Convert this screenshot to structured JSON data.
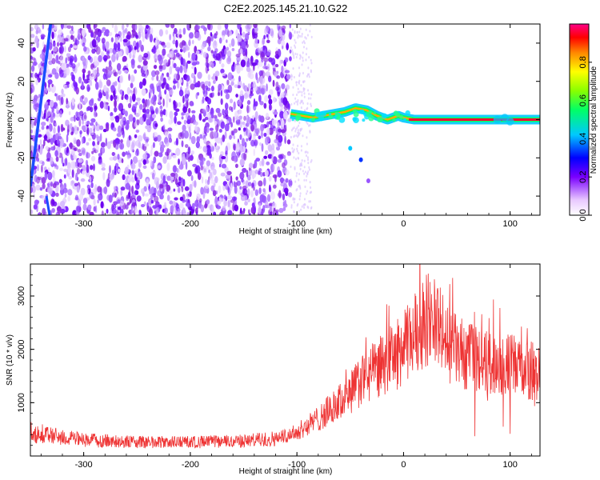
{
  "title": "C2E2.2025.145.21.10.G22",
  "chart_data": [
    {
      "type": "heatmap",
      "xlabel": "Height of straight line (km)",
      "ylabel": "Frequency (Hz)",
      "xlim": [
        -350,
        128
      ],
      "ylim": [
        -50,
        50
      ],
      "x_ticks": [
        -300,
        -200,
        -100,
        0,
        100
      ],
      "y_ticks": [
        -40,
        -20,
        0,
        20,
        40
      ],
      "colorbar": {
        "label": "Normalized spectral amplitude",
        "range": [
          0,
          1
        ],
        "ticks": [
          0.0,
          0.2,
          0.4,
          0.6,
          0.8
        ]
      },
      "ridge": {
        "description": "main frequency trace",
        "points": [
          [
            -106,
            3
          ],
          [
            -95,
            2
          ],
          [
            -85,
            1
          ],
          [
            -75,
            2
          ],
          [
            -65,
            3
          ],
          [
            -55,
            4
          ],
          [
            -45,
            6
          ],
          [
            -35,
            5
          ],
          [
            -25,
            2
          ],
          [
            -15,
            0
          ],
          [
            -5,
            2
          ],
          [
            0,
            1
          ],
          [
            10,
            0
          ],
          [
            128,
            0
          ]
        ]
      },
      "noise_region": {
        "x_range": [
          -350,
          -106
        ]
      }
    },
    {
      "type": "line",
      "xlabel": "Height of straight line (km)",
      "ylabel": "SNR (10 * v/v)",
      "xlim": [
        -350,
        128
      ],
      "ylim": [
        0,
        3600
      ],
      "x_ticks": [
        -300,
        -200,
        -100,
        0,
        100
      ],
      "y_ticks": [
        1000,
        2000,
        3000
      ],
      "series": [
        {
          "color": "#ee3333",
          "envelope": [
            [
              -350,
              450
            ],
            [
              -330,
              380
            ],
            [
              -300,
              300
            ],
            [
              -250,
              260
            ],
            [
              -200,
              260
            ],
            [
              -150,
              280
            ],
            [
              -120,
              330
            ],
            [
              -100,
              450
            ],
            [
              -80,
              700
            ],
            [
              -60,
              1000
            ],
            [
              -40,
              1400
            ],
            [
              -20,
              1700
            ],
            [
              0,
              2000
            ],
            [
              10,
              2300
            ],
            [
              20,
              2550
            ],
            [
              30,
              2600
            ],
            [
              40,
              2100
            ],
            [
              60,
              1850
            ],
            [
              80,
              1750
            ],
            [
              100,
              1700
            ],
            [
              128,
              1550
            ]
          ]
        }
      ]
    }
  ]
}
